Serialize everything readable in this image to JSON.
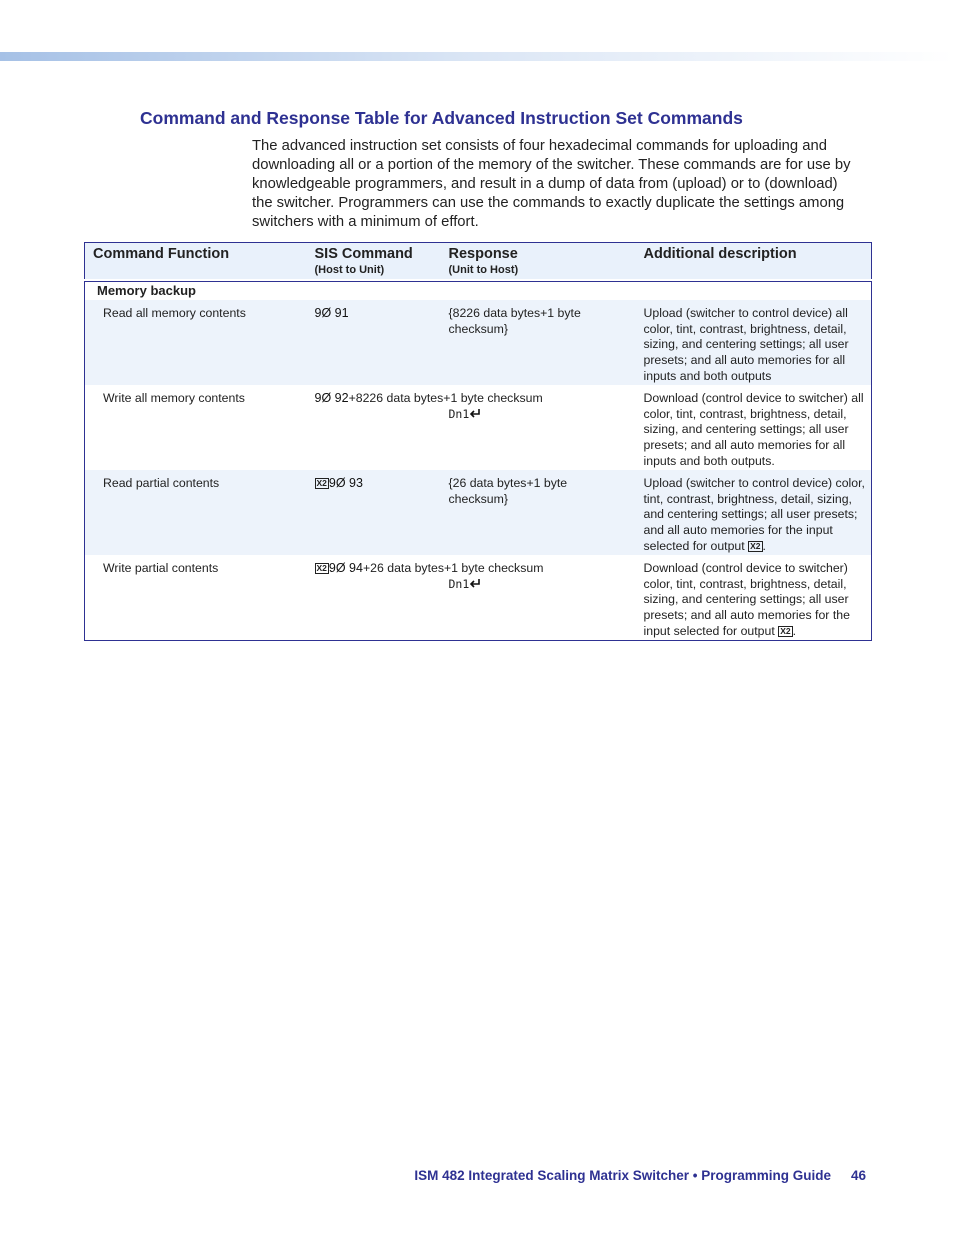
{
  "header": {
    "title": "Command and Response Table for Advanced Instruction Set Commands",
    "intro": "The advanced instruction set consists of four hexadecimal commands for uploading and downloading all or a portion of the memory of the switcher.  These commands are for use by knowledgeable programmers, and result in a dump of data from (upload) or to (download) the switcher.  Programmers can use the commands to exactly duplicate the settings among switchers with a minimum of effort."
  },
  "table": {
    "columns": [
      {
        "title": "Command Function"
      },
      {
        "title": "SIS Command",
        "subtitle": "(Host to Unit)"
      },
      {
        "title": "Response",
        "subtitle": "(Unit to Host)"
      },
      {
        "title": "Additional description"
      }
    ],
    "section": "Memory backup",
    "rows": [
      {
        "function": "Read all memory contents",
        "command": "9Ø 91",
        "response": "{8226 data bytes+1 byte checksum}",
        "description": "Upload (switcher to control device) all color, tint, contrast, brightness, detail, sizing, and centering settings; all user presets; and all auto memories for all inputs and both outputs"
      },
      {
        "function": "Write all memory contents",
        "command": "9Ø 92",
        "command_data": "+8226 data bytes+1 byte checksum",
        "response": "Dn1",
        "description": "Download (control device to switcher) all color, tint, contrast, brightness, detail, sizing, and centering settings; all user presets; and all auto memories for all inputs and both outputs."
      },
      {
        "function": "Read partial contents",
        "command_variable": "X2",
        "command": "9Ø 93",
        "response": "{26 data bytes+1 byte checksum}",
        "description": "Upload (switcher to control device) color, tint, contrast, brightness, detail, sizing, and centering settings; all user presets; and all auto memories for the input selected for output",
        "description_variable": "X2",
        "description_end": "."
      },
      {
        "function": "Write partial contents",
        "command_variable": "X2",
        "command": "9Ø 94",
        "command_data": "+26 data bytes+1 byte checksum",
        "response": "Dn1",
        "description": "Download (control device to switcher) color, tint, contrast, brightness, detail, sizing, and centering settings; all user presets; and all auto memories for the input selected for output",
        "description_variable": "X2",
        "description_end": "."
      }
    ]
  },
  "footer": {
    "guide": "ISM 482 Integrated Scaling Matrix Switcher • Programming Guide",
    "page": "46"
  }
}
